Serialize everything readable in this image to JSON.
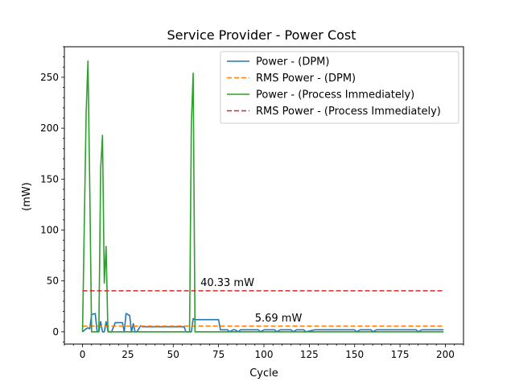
{
  "chart_data": {
    "type": "line",
    "title": "Service Provider - Power Cost",
    "xlabel": "Cycle",
    "ylabel": "(mW)",
    "xlim": [
      -10,
      210
    ],
    "ylim": [
      -12,
      280
    ],
    "xticks": [
      0,
      25,
      50,
      75,
      100,
      125,
      150,
      175,
      200
    ],
    "yticks": [
      0,
      50,
      100,
      150,
      200,
      250
    ],
    "grid": false,
    "legend_position": "top-right",
    "series": [
      {
        "name": "Power - (DPM)",
        "color": "#1f77b4",
        "style": "solid",
        "x": [
          0,
          2,
          3,
          4,
          5,
          7,
          8,
          9,
          10,
          11,
          12,
          13,
          14,
          15,
          16,
          18,
          19,
          22,
          23,
          24,
          26,
          27,
          28,
          29,
          30,
          32,
          33,
          56,
          57,
          58,
          59,
          60,
          61,
          62,
          75,
          76,
          78,
          80,
          81,
          83,
          84,
          86,
          87,
          89,
          90,
          97,
          98,
          100,
          101,
          106,
          107,
          109,
          110,
          115,
          116,
          118,
          119,
          122,
          123,
          128,
          129,
          131,
          132,
          150,
          151,
          153,
          154,
          159,
          160,
          162,
          163,
          184,
          185,
          187,
          188,
          199
        ],
        "values": [
          0,
          3,
          4,
          3,
          17,
          18,
          1,
          0,
          10,
          0,
          0,
          10,
          1,
          0,
          0,
          9,
          9,
          9,
          0,
          18,
          16,
          0,
          8,
          0,
          0,
          6,
          5,
          5,
          0,
          0,
          0,
          0,
          13,
          12,
          12,
          2,
          2,
          2,
          0,
          2,
          2,
          0,
          2,
          2,
          2,
          2,
          0,
          2,
          2,
          2,
          0,
          2,
          2,
          2,
          0,
          2,
          2,
          2,
          0,
          2,
          2,
          2,
          2,
          2,
          0,
          2,
          2,
          2,
          0,
          2,
          2,
          2,
          0,
          2,
          2,
          2
        ]
      },
      {
        "name": "RMS Power - (DPM)",
        "color": "#ff7f0e",
        "style": "dashed",
        "x": [
          0,
          199
        ],
        "values": [
          5.69,
          5.69
        ]
      },
      {
        "name": "Power - (Process Immediately)",
        "color": "#2ca02c",
        "style": "solid",
        "x": [
          0,
          2,
          3,
          4,
          5,
          7,
          8,
          9,
          10,
          11,
          12,
          13,
          14,
          15,
          16,
          58,
          59,
          60,
          61,
          62,
          199
        ],
        "values": [
          0,
          215,
          266,
          140,
          0,
          0,
          0,
          0,
          160,
          193,
          48,
          84,
          0,
          0,
          0,
          0,
          0,
          205,
          254,
          0,
          0
        ]
      },
      {
        "name": "RMS Power - (Process Immediately)",
        "color": "#d62728",
        "style": "dashed",
        "x": [
          0,
          199
        ],
        "values": [
          40.33,
          40.33
        ]
      }
    ],
    "annotations": [
      {
        "text": "40.33 mW",
        "x": 65,
        "y": 45
      },
      {
        "text": "5.69 mW",
        "x": 95,
        "y": 10
      }
    ]
  }
}
